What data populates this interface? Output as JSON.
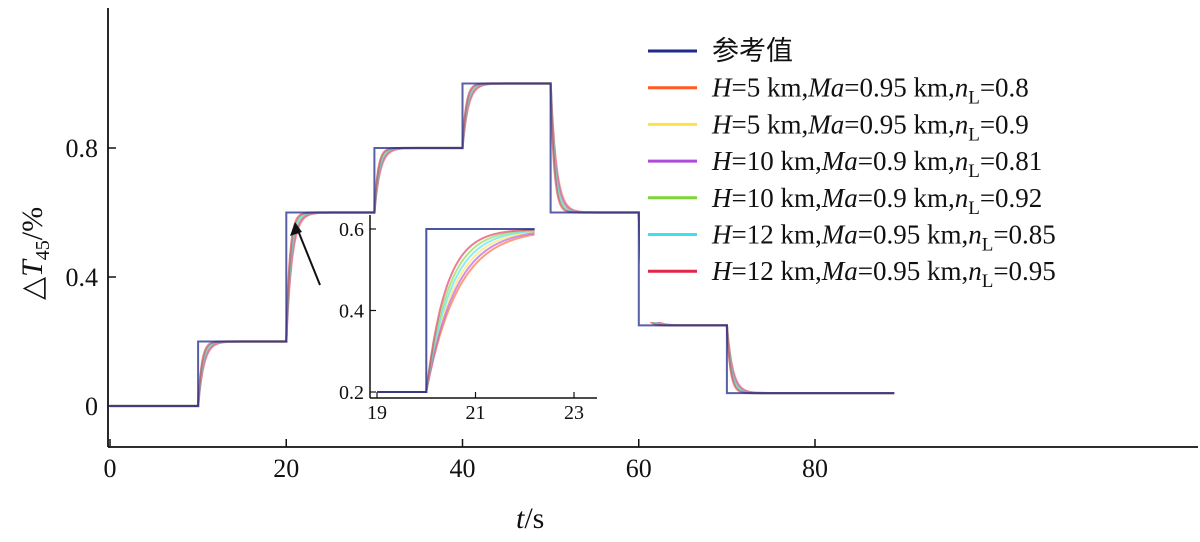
{
  "chart_data": {
    "type": "line",
    "xlabel": "t/s",
    "ylabel": "ΔT45/%",
    "xlim": [
      0,
      120
    ],
    "ylim": [
      -0.12,
      1.22
    ],
    "xticks": [
      "0",
      "20",
      "40",
      "60",
      "80"
    ],
    "yticks": [
      "0",
      "0.4",
      "0.8"
    ],
    "grid": false,
    "legend_position": "top-right",
    "reference_steps": {
      "t": [
        0,
        10,
        20,
        30,
        40,
        50,
        60,
        70,
        90
      ],
      "value": [
        0,
        0.2,
        0.6,
        0.8,
        1.0,
        0.6,
        0.25,
        0.04,
        0.04
      ]
    },
    "series": [
      {
        "name": "参考值",
        "color": "#1f2a8a",
        "lag": 0
      },
      {
        "name": "H=5 km,Ma=0.95 km,nL=0.8",
        "color": "#ff5a1f",
        "lag": 0.65
      },
      {
        "name": "H=5 km,Ma=0.95 km,nL=0.9",
        "color": "#ffe14d",
        "lag": 0.55
      },
      {
        "name": "H=10 km,Ma=0.9 km,nL=0.81",
        "color": "#b04ad8",
        "lag": 0.6
      },
      {
        "name": "H=10 km,Ma=0.9 km,nL=0.92",
        "color": "#7fd43a",
        "lag": 0.45
      },
      {
        "name": "H=12 km,Ma=0.95 km,nL=0.85",
        "color": "#3ee0f0",
        "lag": 0.5
      },
      {
        "name": "H=12 km,Ma=0.95 km,nL=0.95",
        "color": "#e0264a",
        "lag": 0.4
      }
    ],
    "inset": {
      "xlim": [
        19,
        23.5
      ],
      "ylim": [
        0.19,
        0.61
      ],
      "xticks": [
        "19",
        "21",
        "23"
      ],
      "yticks": [
        "0.2",
        "0.4",
        "0.6"
      ]
    }
  },
  "legend": [
    {
      "pre": "",
      "it1": "",
      "mid1": "参考值",
      "it2": "",
      "mid2": "",
      "it3": "",
      "sub": "",
      "post": ""
    },
    {
      "pre": "",
      "it1": "H",
      "mid1": "=5 km,",
      "it2": "Ma",
      "mid2": "=0.95 km,",
      "it3": "n",
      "sub": "L",
      "post": "=0.8"
    },
    {
      "pre": "",
      "it1": "H",
      "mid1": "=5 km,",
      "it2": "Ma",
      "mid2": "=0.95 km,",
      "it3": "n",
      "sub": "L",
      "post": "=0.9"
    },
    {
      "pre": "",
      "it1": "H",
      "mid1": "=10 km,",
      "it2": "Ma",
      "mid2": "=0.9 km,",
      "it3": "n",
      "sub": "L",
      "post": "=0.81"
    },
    {
      "pre": "",
      "it1": "H",
      "mid1": "=10 km,",
      "it2": "Ma",
      "mid2": "=0.9 km,",
      "it3": "n",
      "sub": "L",
      "post": "=0.92"
    },
    {
      "pre": "",
      "it1": "H",
      "mid1": "=12 km,",
      "it2": "Ma",
      "mid2": "=0.95 km,",
      "it3": "n",
      "sub": "L",
      "post": "=0.85"
    },
    {
      "pre": "",
      "it1": "H",
      "mid1": "=12 km,",
      "it2": "Ma",
      "mid2": "=0.95 km,",
      "it3": "n",
      "sub": "L",
      "post": "=0.95"
    }
  ],
  "axis_titles": {
    "x_italic": "t",
    "x_rest": "/s",
    "y_delta": "△",
    "y_italic": "T",
    "y_sub": "45",
    "y_rest": "/%"
  }
}
